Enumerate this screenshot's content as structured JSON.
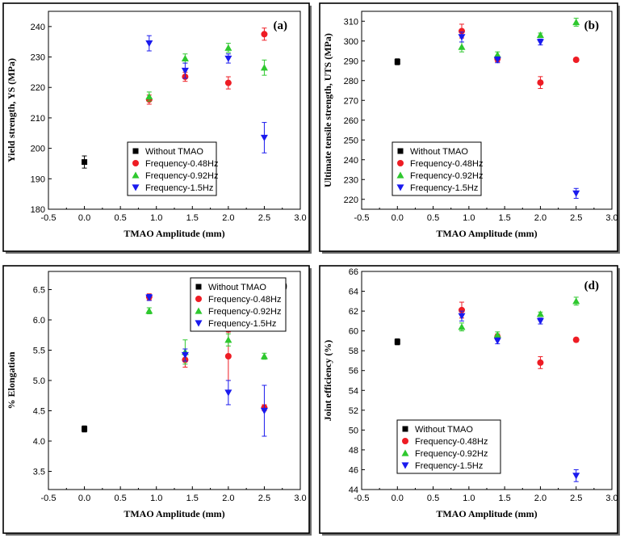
{
  "chart_data": [
    {
      "panel": "(a)",
      "type": "scatter",
      "xlabel": "TMAO Amplitude (mm)",
      "ylabel": "Yield strength, YS (MPa)",
      "xlim": [
        -0.5,
        3.0
      ],
      "ylim": [
        180,
        245
      ],
      "xticks": [
        -0.5,
        0.0,
        0.5,
        1.0,
        1.5,
        2.0,
        2.5,
        3.0
      ],
      "yticks": [
        180,
        190,
        200,
        210,
        220,
        230,
        240
      ],
      "legend_position": "lower-center",
      "series": [
        {
          "name": "Without TMAO",
          "marker": "square",
          "color": "#000000",
          "points": [
            {
              "x": 0.0,
              "y": 195.5,
              "err": 2
            }
          ]
        },
        {
          "name": "Frequency-0.48Hz",
          "marker": "circle",
          "color": "#ee1c24",
          "points": [
            {
              "x": 0.9,
              "y": 216,
              "err": 1.5
            },
            {
              "x": 1.4,
              "y": 223.5,
              "err": 1.5
            },
            {
              "x": 2.0,
              "y": 221.5,
              "err": 2
            },
            {
              "x": 2.5,
              "y": 237.5,
              "err": 2
            }
          ]
        },
        {
          "name": "Frequency-0.92Hz",
          "marker": "triangle-up",
          "color": "#2ec82e",
          "points": [
            {
              "x": 0.9,
              "y": 217,
              "err": 1.5
            },
            {
              "x": 1.4,
              "y": 229.5,
              "err": 1.5
            },
            {
              "x": 2.0,
              "y": 233,
              "err": 1.5
            },
            {
              "x": 2.5,
              "y": 226.5,
              "err": 2.5
            }
          ]
        },
        {
          "name": "Frequency-1.5Hz",
          "marker": "triangle-down",
          "color": "#1a1aee",
          "points": [
            {
              "x": 0.9,
              "y": 234.5,
              "err": 2.5
            },
            {
              "x": 1.4,
              "y": 225.5,
              "err": 2.5
            },
            {
              "x": 2.0,
              "y": 229.5,
              "err": 1.5
            },
            {
              "x": 2.5,
              "y": 203.5,
              "err": 5
            }
          ]
        }
      ]
    },
    {
      "panel": "(b)",
      "type": "scatter",
      "xlabel": "TMAO Amplitude (mm)",
      "ylabel": "Ultimate tensile strength, UTS (MPa)",
      "xlim": [
        -0.5,
        3.0
      ],
      "ylim": [
        215,
        315
      ],
      "xticks": [
        -0.5,
        0.0,
        0.5,
        1.0,
        1.5,
        2.0,
        2.5,
        3.0
      ],
      "yticks": [
        220,
        230,
        240,
        250,
        260,
        270,
        280,
        290,
        300,
        310
      ],
      "legend_position": "lower-center",
      "series": [
        {
          "name": "Without TMAO",
          "marker": "square",
          "color": "#000000",
          "points": [
            {
              "x": 0.0,
              "y": 289.5,
              "err": 1.5
            }
          ]
        },
        {
          "name": "Frequency-0.48Hz",
          "marker": "circle",
          "color": "#ee1c24",
          "points": [
            {
              "x": 0.9,
              "y": 305,
              "err": 3.5
            },
            {
              "x": 1.4,
              "y": 291,
              "err": 1.5
            },
            {
              "x": 2.0,
              "y": 279,
              "err": 3
            },
            {
              "x": 2.5,
              "y": 290.5,
              "err": 1
            }
          ]
        },
        {
          "name": "Frequency-0.92Hz",
          "marker": "triangle-up",
          "color": "#2ec82e",
          "points": [
            {
              "x": 0.9,
              "y": 297,
              "err": 2.5
            },
            {
              "x": 1.4,
              "y": 293,
              "err": 1.5
            },
            {
              "x": 2.0,
              "y": 303,
              "err": 1
            },
            {
              "x": 2.5,
              "y": 309.5,
              "err": 2
            }
          ]
        },
        {
          "name": "Frequency-1.5Hz",
          "marker": "triangle-down",
          "color": "#1a1aee",
          "points": [
            {
              "x": 0.9,
              "y": 302,
              "err": 2.5
            },
            {
              "x": 1.4,
              "y": 290.5,
              "err": 1.5
            },
            {
              "x": 2.0,
              "y": 299.5,
              "err": 1.5
            },
            {
              "x": 2.5,
              "y": 223,
              "err": 2.5
            }
          ]
        }
      ]
    },
    {
      "panel": "(c)",
      "type": "scatter",
      "xlabel": "TMAO Amplitude (mm)",
      "ylabel": "% Elongation",
      "xlim": [
        -0.5,
        3.0
      ],
      "ylim": [
        3.2,
        6.8
      ],
      "xticks": [
        -0.5,
        0.0,
        0.5,
        1.0,
        1.5,
        2.0,
        2.5,
        3.0
      ],
      "yticks": [
        3.5,
        4.0,
        4.5,
        5.0,
        5.5,
        6.0,
        6.5
      ],
      "legend_position": "top-right",
      "series": [
        {
          "name": "Without TMAO",
          "marker": "square",
          "color": "#000000",
          "points": [
            {
              "x": 0.0,
              "y": 4.2,
              "err": 0.05
            }
          ]
        },
        {
          "name": "Frequency-0.48Hz",
          "marker": "circle",
          "color": "#ee1c24",
          "points": [
            {
              "x": 0.9,
              "y": 6.38,
              "err": 0.05
            },
            {
              "x": 1.4,
              "y": 5.34,
              "err": 0.12
            },
            {
              "x": 2.0,
              "y": 5.4,
              "err": 0.4
            },
            {
              "x": 2.5,
              "y": 4.55,
              "err": 0.05
            }
          ]
        },
        {
          "name": "Frequency-0.92Hz",
          "marker": "triangle-up",
          "color": "#2ec82e",
          "points": [
            {
              "x": 0.9,
              "y": 6.15,
              "err": 0.05
            },
            {
              "x": 1.4,
              "y": 5.47,
              "err": 0.2
            },
            {
              "x": 2.0,
              "y": 5.67,
              "err": 0.1
            },
            {
              "x": 2.5,
              "y": 5.4,
              "err": 0.05
            }
          ]
        },
        {
          "name": "Frequency-1.5Hz",
          "marker": "triangle-down",
          "color": "#1a1aee",
          "points": [
            {
              "x": 0.9,
              "y": 6.37,
              "err": 0.05
            },
            {
              "x": 1.4,
              "y": 5.42,
              "err": 0.1
            },
            {
              "x": 2.0,
              "y": 4.8,
              "err": 0.2
            },
            {
              "x": 2.5,
              "y": 4.5,
              "err": 0.42
            }
          ]
        }
      ]
    },
    {
      "panel": "(d)",
      "type": "scatter",
      "xlabel": "TMAO Amplitude (mm)",
      "ylabel": "Joint efficiency (%)",
      "xlim": [
        -0.5,
        3.0
      ],
      "ylim": [
        44,
        66
      ],
      "xticks": [
        -0.5,
        0.0,
        0.5,
        1.0,
        1.5,
        2.0,
        2.5,
        3.0
      ],
      "yticks": [
        44,
        46,
        48,
        50,
        52,
        54,
        56,
        58,
        60,
        62,
        64,
        66
      ],
      "legend_position": "lower-left",
      "series": [
        {
          "name": "Without TMAO",
          "marker": "square",
          "color": "#000000",
          "points": [
            {
              "x": 0.0,
              "y": 58.9,
              "err": 0.3
            }
          ]
        },
        {
          "name": "Frequency-0.48Hz",
          "marker": "circle",
          "color": "#ee1c24",
          "points": [
            {
              "x": 0.9,
              "y": 62.1,
              "err": 0.8
            },
            {
              "x": 1.4,
              "y": 59.4,
              "err": 0.3
            },
            {
              "x": 2.0,
              "y": 56.8,
              "err": 0.6
            },
            {
              "x": 2.5,
              "y": 59.1,
              "err": 0.2
            }
          ]
        },
        {
          "name": "Frequency-0.92Hz",
          "marker": "triangle-up",
          "color": "#2ec82e",
          "points": [
            {
              "x": 0.9,
              "y": 60.4,
              "err": 0.4
            },
            {
              "x": 1.4,
              "y": 59.6,
              "err": 0.3
            },
            {
              "x": 2.0,
              "y": 61.7,
              "err": 0.2
            },
            {
              "x": 2.5,
              "y": 63.0,
              "err": 0.4
            }
          ]
        },
        {
          "name": "Frequency-1.5Hz",
          "marker": "triangle-down",
          "color": "#1a1aee",
          "points": [
            {
              "x": 0.9,
              "y": 61.5,
              "err": 0.5
            },
            {
              "x": 1.4,
              "y": 59.0,
              "err": 0.3
            },
            {
              "x": 2.0,
              "y": 61.0,
              "err": 0.3
            },
            {
              "x": 2.5,
              "y": 45.4,
              "err": 0.6
            }
          ]
        }
      ]
    }
  ]
}
